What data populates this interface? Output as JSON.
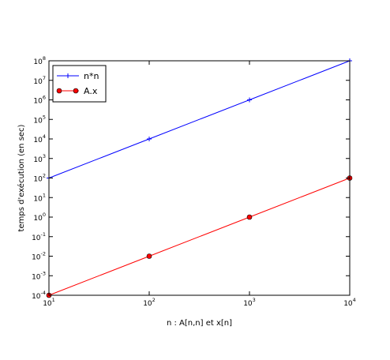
{
  "chart_data": {
    "type": "line",
    "xscale": "log",
    "yscale": "log",
    "xlabel": "n : A[n,n] et x[n]",
    "ylabel": "temps d'exécution (en sec)",
    "xlim": [
      10,
      10000
    ],
    "ylim": [
      0.0001,
      100000000
    ],
    "x_ticks": [
      10,
      100,
      1000,
      10000
    ],
    "x_tick_labels": [
      {
        "base": "10",
        "exp": "1"
      },
      {
        "base": "10",
        "exp": "2"
      },
      {
        "base": "10",
        "exp": "3"
      },
      {
        "base": "10",
        "exp": "4"
      }
    ],
    "y_ticks": [
      0.0001,
      0.001,
      0.01,
      0.1,
      1,
      10,
      100,
      1000,
      10000,
      100000,
      1000000,
      10000000,
      100000000
    ],
    "y_tick_labels": [
      {
        "base": "10",
        "exp": "-4"
      },
      {
        "base": "10",
        "exp": "-3"
      },
      {
        "base": "10",
        "exp": "-2"
      },
      {
        "base": "10",
        "exp": "-1"
      },
      {
        "base": "10",
        "exp": "0"
      },
      {
        "base": "10",
        "exp": "1"
      },
      {
        "base": "10",
        "exp": "2"
      },
      {
        "base": "10",
        "exp": "3"
      },
      {
        "base": "10",
        "exp": "4"
      },
      {
        "base": "10",
        "exp": "5"
      },
      {
        "base": "10",
        "exp": "6"
      },
      {
        "base": "10",
        "exp": "7"
      },
      {
        "base": "10",
        "exp": "8"
      }
    ],
    "grid": false,
    "legend_position": "top-left",
    "series": [
      {
        "name": "n*n",
        "color": "#0000ff",
        "marker": "plus",
        "x": [
          10,
          100,
          1000,
          10000
        ],
        "y": [
          100,
          10000,
          1000000,
          100000000
        ]
      },
      {
        "name": "A.x",
        "color": "#ff0000",
        "marker": "circle",
        "x": [
          10,
          100,
          1000,
          10000
        ],
        "y": [
          0.0001,
          0.01,
          1,
          100
        ]
      }
    ]
  }
}
